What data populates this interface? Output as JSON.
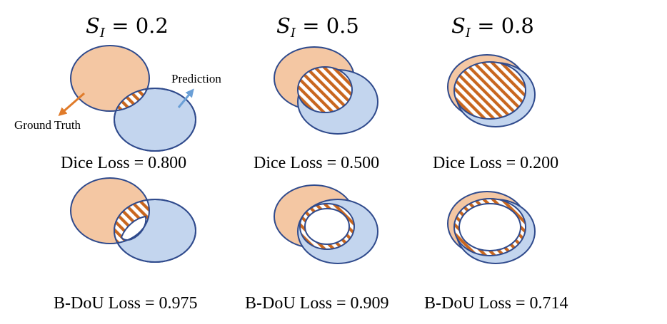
{
  "columns": [
    {
      "title_symbol": "S",
      "title_subscript": "I",
      "title_rest": " = 0.2",
      "dice_label": "Dice Loss = 0.800",
      "bdou_label": "B-DoU Loss = 0.975"
    },
    {
      "title_symbol": "S",
      "title_subscript": "I",
      "title_rest": " = 0.5",
      "dice_label": "Dice Loss = 0.500",
      "bdou_label": "B-DoU Loss = 0.909"
    },
    {
      "title_symbol": "S",
      "title_subscript": "I",
      "title_rest": " = 0.8",
      "dice_label": "Dice Loss = 0.200",
      "bdou_label": "B-DoU Loss = 0.714"
    }
  ],
  "annotations": {
    "ground_truth": "Ground Truth",
    "prediction": "Prediction"
  },
  "colors": {
    "ground_truth_fill": "#f4c7a3",
    "prediction_fill": "#c3d5ee",
    "outline": "#2f4a8c",
    "hatch_orange": "#c8661e",
    "ground_truth_arrow": "#e07b2a",
    "prediction_arrow": "#6a9fd6"
  }
}
